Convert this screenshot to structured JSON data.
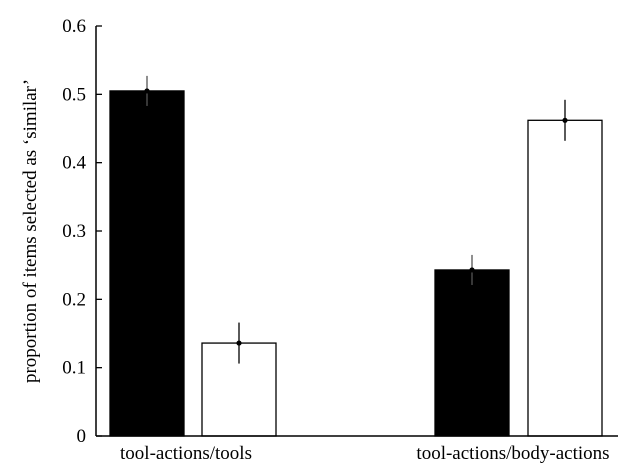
{
  "chart_data": {
    "type": "bar",
    "title": "",
    "xlabel": "",
    "ylabel": "proportion of items selected as ‘similar’",
    "ylim": [
      0,
      0.6
    ],
    "yticks": [
      "0",
      "0.1",
      "0.2",
      "0.3",
      "0.4",
      "0.5",
      "0.6"
    ],
    "categories": [
      "tool-actions/tools",
      "tool-actions/body-actions"
    ],
    "series": [
      {
        "color": "#000000",
        "values": [
          0.505,
          0.243
        ],
        "error": [
          0.022,
          0.022
        ]
      },
      {
        "color": "#ffffff",
        "values": [
          0.136,
          0.462
        ],
        "error": [
          0.03,
          0.03
        ]
      }
    ],
    "legend": "none",
    "grid": false
  }
}
